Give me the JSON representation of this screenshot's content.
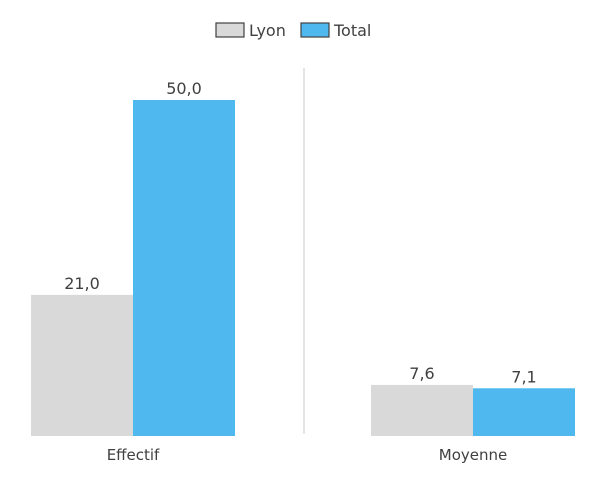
{
  "chart_data": {
    "type": "bar",
    "title": "",
    "xlabel": "",
    "ylabel": "",
    "legend_position": "top-center",
    "grid": false,
    "value_format": "decimal-comma",
    "panels": [
      {
        "category": "Effectif",
        "series": [
          {
            "name": "Lyon",
            "value": 21.0,
            "label": "21,0"
          },
          {
            "name": "Total",
            "value": 50.0,
            "label": "50,0"
          }
        ],
        "ylim": [
          0,
          50
        ]
      },
      {
        "category": "Moyenne",
        "series": [
          {
            "name": "Lyon",
            "value": 7.6,
            "label": "7,6"
          },
          {
            "name": "Total",
            "value": 7.1,
            "label": "7,1"
          }
        ],
        "ylim": [
          0,
          50
        ]
      }
    ],
    "legend": [
      {
        "name": "Lyon",
        "color": "#d9d9d9"
      },
      {
        "name": "Total",
        "color": "#4fb8ee"
      }
    ]
  }
}
